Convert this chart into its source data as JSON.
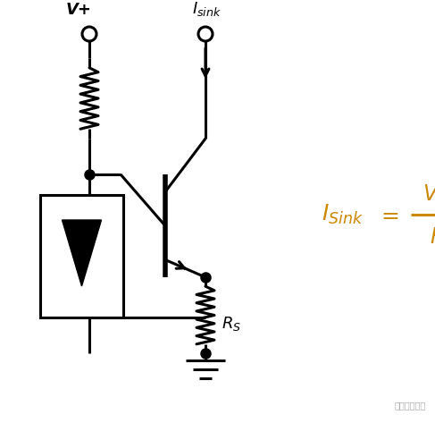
{
  "bg_color": "#ffffff",
  "line_color": "#000000",
  "formula_color": "#CC8800",
  "lw": 2.2,
  "dot_size": 8,
  "fig_width": 4.87,
  "fig_height": 4.73,
  "dpi": 100,
  "vplus_label": "V+",
  "isink_label": "I_{sink}",
  "rs_label": "R_S",
  "formula_lhs": "I_{Sink}",
  "formula_num": "V_{ref}",
  "formula_den": "R_S"
}
